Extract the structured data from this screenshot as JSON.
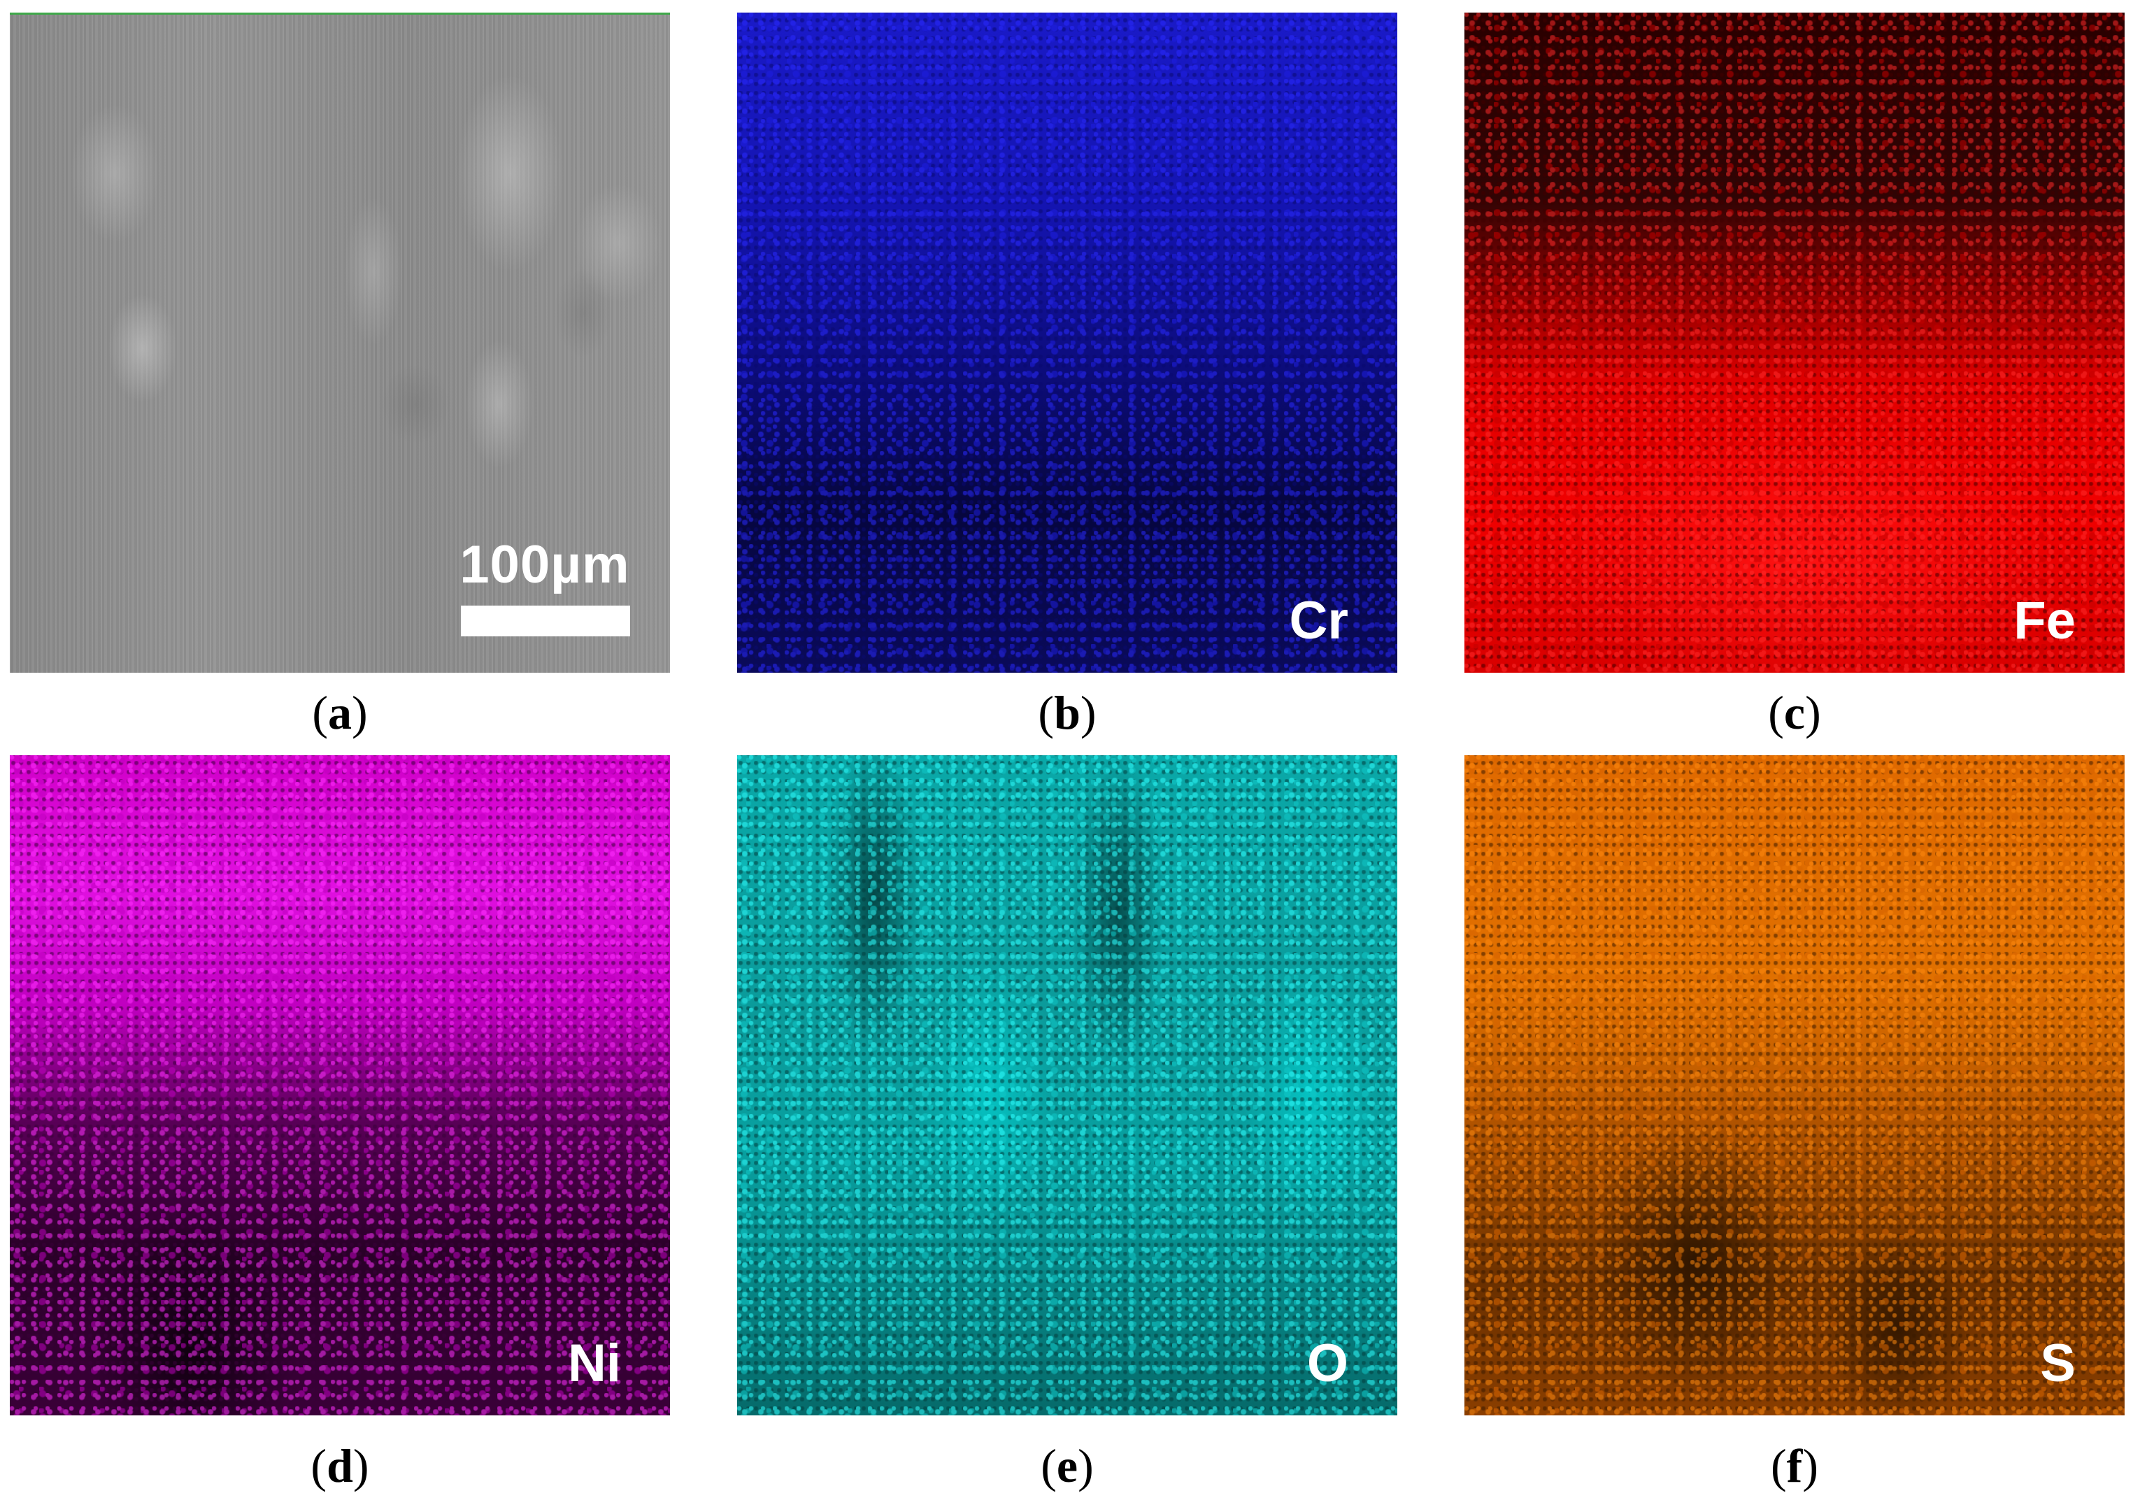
{
  "panels": [
    {
      "id": "a",
      "scale_bar": "100µm"
    },
    {
      "id": "b",
      "element": "Cr",
      "color": "#1a1ad0"
    },
    {
      "id": "c",
      "element": "Fe",
      "color": "#ff0000"
    },
    {
      "id": "d",
      "element": "Ni",
      "color": "#ff00ff"
    },
    {
      "id": "e",
      "element": "O",
      "color": "#00e0e0"
    },
    {
      "id": "f",
      "element": "S",
      "color": "#ff7a00"
    }
  ],
  "captions": {
    "a": "a",
    "b": "b",
    "c": "c",
    "d": "d",
    "e": "e",
    "f": "f"
  }
}
